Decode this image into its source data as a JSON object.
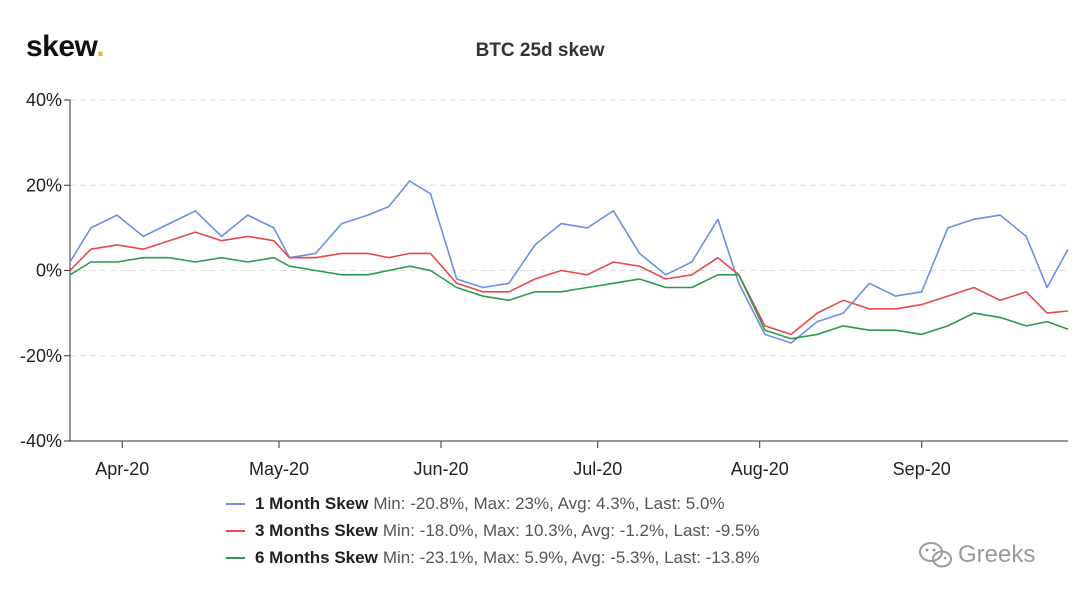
{
  "brand": {
    "name": "skew",
    "dot": "."
  },
  "watermark": {
    "text": "Greeks",
    "icon": "wechat-icon"
  },
  "chart_data": {
    "type": "line",
    "title": "BTC 25d skew",
    "xlabel": "",
    "ylabel": "",
    "ylim": [
      -40,
      40
    ],
    "y_ticks": [
      "-40%",
      "-20%",
      "0%",
      "20%",
      "40%"
    ],
    "y_tick_values": [
      -40,
      -20,
      0,
      20,
      40
    ],
    "x_range": [
      "2020-03-22",
      "2020-09-29"
    ],
    "x_ticks": [
      {
        "label": "Apr-20",
        "date": "2020-04-01"
      },
      {
        "label": "May-20",
        "date": "2020-05-01"
      },
      {
        "label": "Jun-20",
        "date": "2020-06-01"
      },
      {
        "label": "Jul-20",
        "date": "2020-07-01"
      },
      {
        "label": "Aug-20",
        "date": "2020-08-01"
      },
      {
        "label": "Sep-20",
        "date": "2020-09-01"
      }
    ],
    "grid": "horizontal dashed",
    "legend_position": "bottom",
    "series": [
      {
        "name": "1 Month Skew",
        "stats": "Min: -20.8%, Max: 23%, Avg: 4.3%, Last: 5.0%",
        "color": "#6b8fe6",
        "x": [
          "2020-03-22",
          "2020-03-26",
          "2020-03-31",
          "2020-04-05",
          "2020-04-10",
          "2020-04-15",
          "2020-04-20",
          "2020-04-25",
          "2020-04-30",
          "2020-05-03",
          "2020-05-08",
          "2020-05-13",
          "2020-05-18",
          "2020-05-22",
          "2020-05-26",
          "2020-05-30",
          "2020-06-04",
          "2020-06-09",
          "2020-06-14",
          "2020-06-19",
          "2020-06-24",
          "2020-06-29",
          "2020-07-04",
          "2020-07-09",
          "2020-07-14",
          "2020-07-19",
          "2020-07-24",
          "2020-07-28",
          "2020-08-02",
          "2020-08-07",
          "2020-08-12",
          "2020-08-17",
          "2020-08-22",
          "2020-08-27",
          "2020-09-01",
          "2020-09-06",
          "2020-09-11",
          "2020-09-16",
          "2020-09-21",
          "2020-09-25",
          "2020-09-29"
        ],
        "values": [
          2,
          10,
          13,
          8,
          11,
          14,
          8,
          13,
          10,
          3,
          4,
          11,
          13,
          15,
          21,
          18,
          -2,
          -4,
          -3,
          6,
          11,
          10,
          14,
          4,
          -1,
          2,
          12,
          -3,
          -15,
          -17,
          -12,
          -10,
          -3,
          -6,
          -5,
          10,
          12,
          13,
          8,
          -4,
          5
        ]
      },
      {
        "name": "3 Months Skew",
        "stats": "Min: -18.0%, Max: 10.3%, Avg: -1.2%, Last: -9.5%",
        "color": "#e84a4a",
        "x": [
          "2020-03-22",
          "2020-03-26",
          "2020-03-31",
          "2020-04-05",
          "2020-04-10",
          "2020-04-15",
          "2020-04-20",
          "2020-04-25",
          "2020-04-30",
          "2020-05-03",
          "2020-05-08",
          "2020-05-13",
          "2020-05-18",
          "2020-05-22",
          "2020-05-26",
          "2020-05-30",
          "2020-06-04",
          "2020-06-09",
          "2020-06-14",
          "2020-06-19",
          "2020-06-24",
          "2020-06-29",
          "2020-07-04",
          "2020-07-09",
          "2020-07-14",
          "2020-07-19",
          "2020-07-24",
          "2020-07-28",
          "2020-08-02",
          "2020-08-07",
          "2020-08-12",
          "2020-08-17",
          "2020-08-22",
          "2020-08-27",
          "2020-09-01",
          "2020-09-06",
          "2020-09-11",
          "2020-09-16",
          "2020-09-21",
          "2020-09-25",
          "2020-09-29"
        ],
        "values": [
          0,
          5,
          6,
          5,
          7,
          9,
          7,
          8,
          7,
          3,
          3,
          4,
          4,
          3,
          4,
          4,
          -3,
          -5,
          -5,
          -2,
          0,
          -1,
          2,
          1,
          -2,
          -1,
          3,
          -1,
          -13,
          -15,
          -10,
          -7,
          -9,
          -9,
          -8,
          -6,
          -4,
          -7,
          -5,
          -10,
          -9.5
        ]
      },
      {
        "name": "6 Months Skew",
        "stats": "Min: -23.1%, Max: 5.9%, Avg: -5.3%, Last: -13.8%",
        "color": "#2e9a4e",
        "x": [
          "2020-03-22",
          "2020-03-26",
          "2020-03-31",
          "2020-04-05",
          "2020-04-10",
          "2020-04-15",
          "2020-04-20",
          "2020-04-25",
          "2020-04-30",
          "2020-05-03",
          "2020-05-08",
          "2020-05-13",
          "2020-05-18",
          "2020-05-22",
          "2020-05-26",
          "2020-05-30",
          "2020-06-04",
          "2020-06-09",
          "2020-06-14",
          "2020-06-19",
          "2020-06-24",
          "2020-06-29",
          "2020-07-04",
          "2020-07-09",
          "2020-07-14",
          "2020-07-19",
          "2020-07-24",
          "2020-07-28",
          "2020-08-02",
          "2020-08-07",
          "2020-08-12",
          "2020-08-17",
          "2020-08-22",
          "2020-08-27",
          "2020-09-01",
          "2020-09-06",
          "2020-09-11",
          "2020-09-16",
          "2020-09-21",
          "2020-09-25",
          "2020-09-29"
        ],
        "values": [
          -1,
          2,
          2,
          3,
          3,
          2,
          3,
          2,
          3,
          1,
          0,
          -1,
          -1,
          0,
          1,
          0,
          -4,
          -6,
          -7,
          -5,
          -5,
          -4,
          -3,
          -2,
          -4,
          -4,
          -1,
          -1,
          -14,
          -16,
          -15,
          -13,
          -14,
          -14,
          -15,
          -13,
          -10,
          -11,
          -13,
          -12,
          -13.8
        ]
      }
    ]
  }
}
